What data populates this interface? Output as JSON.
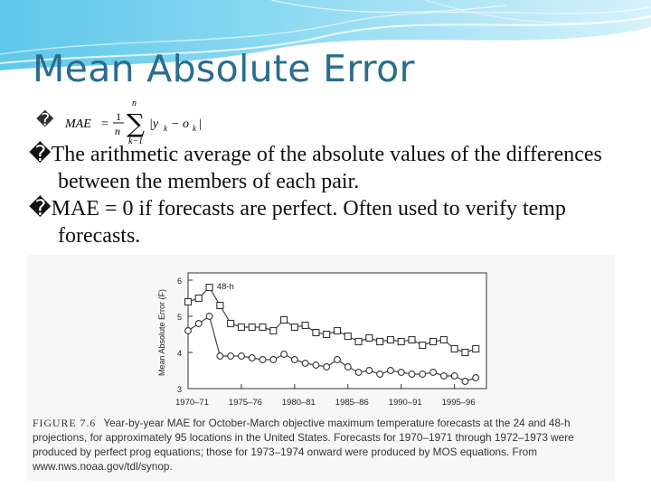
{
  "slide": {
    "title": "Mean Absolute Error",
    "formula_bullet": "�",
    "formula": {
      "lhs": "MAE",
      "equals": "=",
      "numerator": "1",
      "denominator": "n",
      "upper_limit": "n",
      "lower_limit": "k−1",
      "sigma": "∑",
      "term": "|y",
      "sub_y": "k",
      "minus": "− o",
      "sub_o": "k",
      "close": "|"
    },
    "bullets": [
      {
        "marker": "�",
        "text": "The arithmetic average of the absolute values of the differences between the members of each pair."
      },
      {
        "marker": "�",
        "text": "MAE = 0 if forecasts are perfect.  Often used to verify temp forecasts."
      }
    ]
  },
  "figure": {
    "caption_label": "FIGURE 7.6",
    "caption_text": "Year-by-year MAE for October-March objective maximum temperature forecasts at the 24 and 48-h projections, for approximately 95 locations in the United States. Forecasts for 1970–1971 through 1972–1973 were produced by perfect prog equations; those for 1973–1974 onward were produced by MOS equations. From www.nws.noaa.gov/tdl/synop.",
    "chart_data": {
      "type": "line",
      "ylabel": "Mean Absolute Error (F)",
      "ylim": [
        3,
        6
      ],
      "yticks": [
        "3",
        "4",
        "5",
        "6"
      ],
      "xtick_labels": [
        "1970–71",
        "1975–76",
        "1980–81",
        "1985–86",
        "1990–91",
        "1995–96"
      ],
      "xtick_years": [
        1970,
        1975,
        1980,
        1985,
        1990,
        1995
      ],
      "xlim": [
        1970,
        1998
      ],
      "series": [
        {
          "name": "48-h",
          "marker": "square",
          "x": [
            1970,
            1971,
            1972,
            1973,
            1974,
            1975,
            1976,
            1977,
            1978,
            1979,
            1980,
            1981,
            1982,
            1983,
            1984,
            1985,
            1986,
            1987,
            1988,
            1989,
            1990,
            1991,
            1992,
            1993,
            1994,
            1995,
            1996,
            1997
          ],
          "y": [
            5.4,
            5.5,
            5.8,
            5.3,
            4.8,
            4.7,
            4.7,
            4.7,
            4.6,
            4.9,
            4.7,
            4.75,
            4.55,
            4.5,
            4.6,
            4.45,
            4.3,
            4.4,
            4.3,
            4.35,
            4.3,
            4.35,
            4.2,
            4.3,
            4.35,
            4.1,
            4.0,
            4.1
          ]
        },
        {
          "name": "",
          "marker": "circle",
          "x": [
            1970,
            1971,
            1972,
            1973,
            1974,
            1975,
            1976,
            1977,
            1978,
            1979,
            1980,
            1981,
            1982,
            1983,
            1984,
            1985,
            1986,
            1987,
            1988,
            1989,
            1990,
            1991,
            1992,
            1993,
            1994,
            1995,
            1996,
            1997
          ],
          "y": [
            4.6,
            4.8,
            5.0,
            3.9,
            3.9,
            3.9,
            3.85,
            3.8,
            3.8,
            3.95,
            3.8,
            3.7,
            3.65,
            3.6,
            3.8,
            3.6,
            3.45,
            3.5,
            3.4,
            3.5,
            3.45,
            3.4,
            3.4,
            3.45,
            3.35,
            3.35,
            3.2,
            3.3
          ]
        }
      ],
      "series_label": "48-h"
    }
  }
}
